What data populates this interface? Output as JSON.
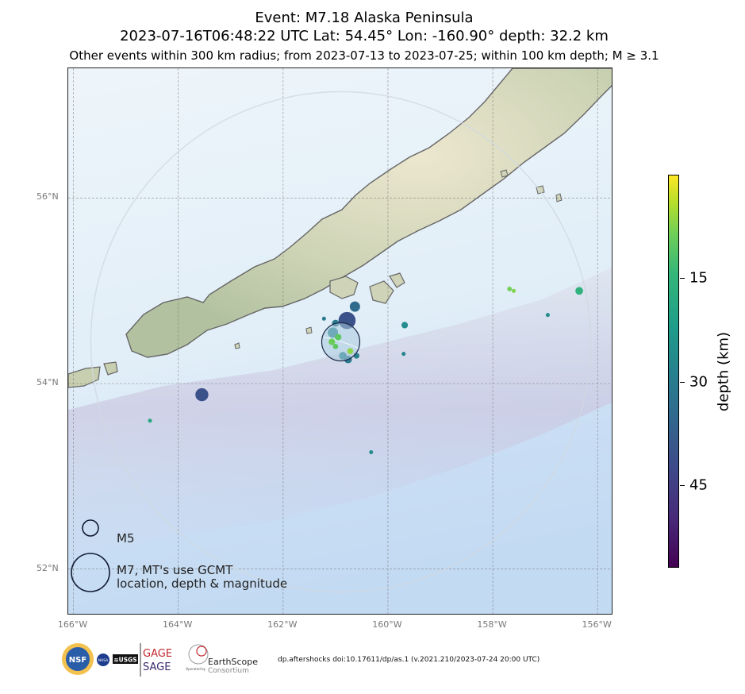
{
  "title": {
    "line1": "Event: M7.18 Alaska Peninsula",
    "line2": "2023-07-16T06:48:22 UTC Lat: 54.45° Lon: -160.90° depth: 32.2 km",
    "line3": "Other events within 300 km radius; from 2023-07-13 to 2023-07-25; within 100 km depth; M ≥ 3.1"
  },
  "map": {
    "lat_range": [
      51.5,
      57.4
    ],
    "lon_range": [
      -166.1,
      -155.7
    ],
    "lat_ticks": [
      {
        "value": 52,
        "label": "52°N"
      },
      {
        "value": 54,
        "label": "54°N"
      },
      {
        "value": 56,
        "label": "56°N"
      }
    ],
    "lon_ticks": [
      {
        "value": -166,
        "label": "166°W"
      },
      {
        "value": -164,
        "label": "164°W"
      },
      {
        "value": -162,
        "label": "162°W"
      },
      {
        "value": -160,
        "label": "160°W"
      },
      {
        "value": -158,
        "label": "158°W"
      },
      {
        "value": -156,
        "label": "156°W"
      }
    ],
    "mainshock": {
      "lat": 54.45,
      "lon": -160.9,
      "depth_km": 32.2,
      "mag": 7.18
    },
    "radius_km": 300,
    "events": [
      {
        "lat": 54.68,
        "lon": -160.78,
        "depth": 47,
        "mag": 5.6
      },
      {
        "lat": 54.83,
        "lon": -160.63,
        "depth": 42,
        "mag": 4.6
      },
      {
        "lat": 53.88,
        "lon": -163.55,
        "depth": 47,
        "mag": 5.0
      },
      {
        "lat": 54.65,
        "lon": -161.0,
        "depth": 38,
        "mag": 4.1
      },
      {
        "lat": 54.7,
        "lon": -161.22,
        "depth": 38,
        "mag": 3.5
      },
      {
        "lat": 54.55,
        "lon": -161.05,
        "depth": 35,
        "mag": 4.6
      },
      {
        "lat": 54.5,
        "lon": -160.95,
        "depth": 14,
        "mag": 4.0
      },
      {
        "lat": 54.45,
        "lon": -161.07,
        "depth": 12,
        "mag": 4.0
      },
      {
        "lat": 54.4,
        "lon": -161.0,
        "depth": 14,
        "mag": 3.8
      },
      {
        "lat": 54.35,
        "lon": -160.72,
        "depth": 9,
        "mag": 3.9
      },
      {
        "lat": 54.3,
        "lon": -160.86,
        "depth": 36,
        "mag": 4.2
      },
      {
        "lat": 54.26,
        "lon": -160.76,
        "depth": 38,
        "mag": 4.2
      },
      {
        "lat": 54.3,
        "lon": -160.6,
        "depth": 36,
        "mag": 3.9
      },
      {
        "lat": 54.63,
        "lon": -159.68,
        "depth": 33,
        "mag": 4.0
      },
      {
        "lat": 54.32,
        "lon": -159.7,
        "depth": 35,
        "mag": 3.4
      },
      {
        "lat": 53.26,
        "lon": -160.32,
        "depth": 33,
        "mag": 3.4
      },
      {
        "lat": 53.6,
        "lon": -164.54,
        "depth": 25,
        "mag": 3.6
      },
      {
        "lat": 55.02,
        "lon": -157.68,
        "depth": 11,
        "mag": 3.7
      },
      {
        "lat": 55.0,
        "lon": -157.6,
        "depth": 10,
        "mag": 3.6
      },
      {
        "lat": 54.74,
        "lon": -156.95,
        "depth": 33,
        "mag": 3.6
      },
      {
        "lat": 55.0,
        "lon": -156.35,
        "depth": 22,
        "mag": 4.2
      }
    ],
    "colors": {
      "land": "#b9c7a2",
      "land_highlight": "#e9e5cc",
      "coastline": "#666666",
      "sea_shallow": "#e6f1f8",
      "sea_deep": "#c3dcf3",
      "trench": "#c7c1dc",
      "mainshock_fill": "#a9cadd",
      "legend_circle": "#111a33"
    }
  },
  "colorbar": {
    "label": "depth (km)",
    "range": [
      57,
      0
    ],
    "ticks": [
      {
        "value": 15,
        "label": "15"
      },
      {
        "value": 30,
        "label": "30"
      },
      {
        "value": 45,
        "label": "45"
      }
    ]
  },
  "legend": {
    "m5": "M5",
    "m7_line1": "M7, MT's use GCMT",
    "m7_line2": "location, depth & magnitude"
  },
  "logos": {
    "nsf": "NSF",
    "nasa": "NASA",
    "usgs": "≋USGS",
    "gage": "GAGE",
    "sage": "SAGE",
    "earthscope": "EarthScope",
    "consortium": "Consortium",
    "operated_by": "Operated by"
  },
  "credit": "dp.aftershocks doi:10.17611/dp/as.1 (v.2021.210/2023-07-24 20:00 UTC)"
}
